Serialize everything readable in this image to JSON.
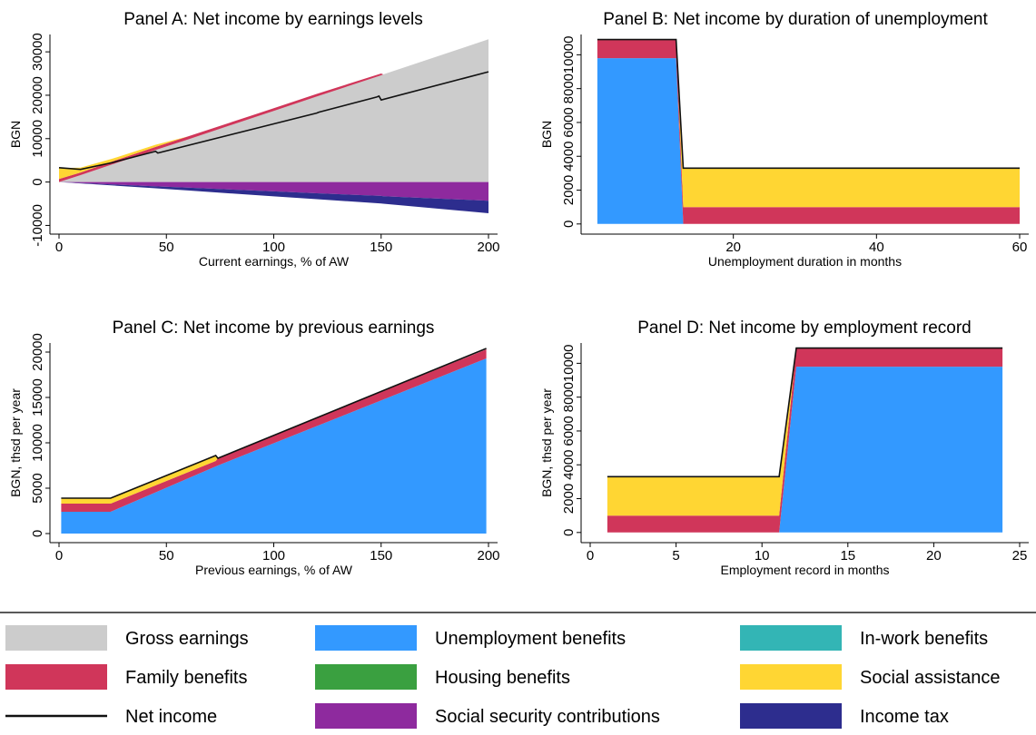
{
  "colors": {
    "gross": "#cccccc",
    "family": "#d0365a",
    "net": "#111111",
    "unemp": "#3399ff",
    "housing": "#3aa040",
    "ssc": "#8e2a9e",
    "inwork": "#33b5b5",
    "socassist": "#ffd633",
    "tax": "#2d2d8e"
  },
  "legend": [
    {
      "key": "gross",
      "label": "Gross earnings",
      "kind": "fill"
    },
    {
      "key": "unemp",
      "label": "Unemployment benefits",
      "kind": "fill"
    },
    {
      "key": "inwork",
      "label": "In-work benefits",
      "kind": "fill"
    },
    {
      "key": "family",
      "label": "Family benefits",
      "kind": "fill"
    },
    {
      "key": "housing",
      "label": "Housing benefits",
      "kind": "fill"
    },
    {
      "key": "socassist",
      "label": "Social assistance",
      "kind": "fill"
    },
    {
      "key": "net",
      "label": "Net income",
      "kind": "line"
    },
    {
      "key": "ssc",
      "label": "Social security contributions",
      "kind": "fill"
    },
    {
      "key": "tax",
      "label": "Income tax",
      "kind": "fill"
    }
  ],
  "chart_data": [
    {
      "type": "area",
      "title": "Panel A: Net income by earnings levels",
      "xlabel": "Current earnings, % of AW",
      "ylabel": "BGN",
      "xlim": [
        0,
        200
      ],
      "ylim": [
        -12000,
        34000
      ],
      "xticks": [
        "0",
        "50",
        "100",
        "150",
        "200"
      ],
      "xtick_values": [
        0,
        50,
        100,
        150,
        200
      ],
      "yticks": [
        "-10000",
        "0",
        "10000",
        "20000",
        "30000"
      ],
      "ytick_values": [
        -10000,
        0,
        10000,
        20000,
        30000
      ],
      "x": [
        0,
        10,
        25,
        45,
        60,
        100,
        120,
        150,
        151,
        200
      ],
      "areas": [
        {
          "key": "gross",
          "lower": [
            0,
            0,
            0,
            0,
            0,
            0,
            0,
            0,
            0,
            0
          ],
          "upper": [
            0,
            1600,
            4100,
            7400,
            9800,
            16400,
            19700,
            24600,
            24800,
            32900
          ]
        },
        {
          "key": "family",
          "lower": [
            0,
            1600,
            4100,
            7400,
            9800,
            16400,
            19700,
            24600,
            24800,
            32900
          ],
          "upper": [
            700,
            2200,
            4800,
            8100,
            10500,
            17000,
            20300,
            25000,
            24800,
            32900
          ]
        },
        {
          "key": "socassist",
          "lower": [
            700,
            2200,
            4800,
            8100,
            10500,
            17000,
            20300,
            25000,
            24800,
            32900
          ],
          "upper": [
            3200,
            3300,
            5400,
            8600,
            10500,
            17000,
            20300,
            25000,
            24800,
            32900
          ]
        },
        {
          "key": "ssc",
          "lower": [
            0,
            -220,
            -550,
            -1000,
            -1300,
            -2150,
            -2600,
            -3200,
            -3250,
            -4300
          ],
          "upper": [
            0,
            0,
            0,
            0,
            0,
            0,
            0,
            0,
            0,
            0
          ]
        },
        {
          "key": "tax",
          "lower": [
            0,
            -320,
            -800,
            -1450,
            -1950,
            -3300,
            -3950,
            -4950,
            -5000,
            -7200
          ],
          "upper": [
            0,
            -220,
            -550,
            -1000,
            -1300,
            -2150,
            -2600,
            -3200,
            -3250,
            -4300
          ]
        }
      ],
      "net_line": {
        "x": [
          0,
          10,
          25,
          45,
          46,
          100,
          120,
          121,
          148,
          149,
          150,
          200
        ],
        "y": [
          3300,
          2900,
          4500,
          7100,
          6700,
          13400,
          15900,
          16100,
          19600,
          19800,
          18900,
          25400
        ]
      }
    },
    {
      "type": "area",
      "title": "Panel B: Net income by duration of unemployment",
      "xlabel": "Unemployment duration in months",
      "ylabel": "BGN",
      "xlim": [
        0,
        60
      ],
      "ylim": [
        -600,
        11200
      ],
      "xticks": [
        "20",
        "40",
        "60"
      ],
      "xtick_values": [
        20,
        40,
        60
      ],
      "yticks": [
        "0",
        "2000",
        "4000",
        "6000",
        "8000",
        "10000"
      ],
      "ytick_values": [
        0,
        2000,
        4000,
        6000,
        8000,
        10000
      ],
      "x": [
        1,
        12,
        13,
        60
      ],
      "areas": [
        {
          "key": "unemp",
          "lower": [
            0,
            0,
            0,
            0
          ],
          "upper": [
            9800,
            9800,
            0,
            0
          ]
        },
        {
          "key": "family",
          "lower": [
            9800,
            9800,
            0,
            0
          ],
          "upper": [
            10900,
            10900,
            1000,
            1000
          ]
        },
        {
          "key": "socassist",
          "lower": [
            10900,
            10900,
            1000,
            1000
          ],
          "upper": [
            10900,
            10900,
            3300,
            3300
          ]
        }
      ],
      "net_line": {
        "x": [
          1,
          12,
          13,
          60
        ],
        "y": [
          10900,
          10900,
          3300,
          3300
        ]
      }
    },
    {
      "type": "area",
      "title": "Panel C: Net income by previous earnings",
      "xlabel": "Previous earnings, % of AW",
      "ylabel": "BGN, thsd per year",
      "xlim": [
        0,
        200
      ],
      "ylim": [
        -1000,
        21000
      ],
      "xticks": [
        "0",
        "50",
        "100",
        "150",
        "200"
      ],
      "xtick_values": [
        0,
        50,
        100,
        150,
        200
      ],
      "yticks": [
        "0",
        "5000",
        "10000",
        "15000",
        "20000"
      ],
      "ytick_values": [
        0,
        5000,
        10000,
        15000,
        20000
      ],
      "x": [
        1,
        24,
        73,
        74,
        199
      ],
      "areas": [
        {
          "key": "unemp",
          "lower": [
            0,
            0,
            0,
            0,
            0
          ],
          "upper": [
            2400,
            2400,
            7400,
            7500,
            19300
          ]
        },
        {
          "key": "family",
          "lower": [
            2400,
            2400,
            7400,
            7500,
            19300
          ],
          "upper": [
            3300,
            3300,
            8000,
            8300,
            20300
          ]
        },
        {
          "key": "socassist",
          "lower": [
            3300,
            3300,
            8000,
            8300,
            20300
          ],
          "upper": [
            3900,
            3900,
            8600,
            8300,
            20300
          ]
        }
      ],
      "net_line": {
        "x": [
          1,
          24,
          73,
          74,
          199
        ],
        "y": [
          3900,
          3900,
          8600,
          8300,
          20400
        ]
      }
    },
    {
      "type": "area",
      "title": "Panel D: Net income by employment record",
      "xlabel": "Employment record in months",
      "ylabel": "BGN, thsd per year",
      "xlim": [
        0,
        25
      ],
      "ylim": [
        -600,
        11200
      ],
      "xticks": [
        "0",
        "5",
        "10",
        "15",
        "20",
        "25"
      ],
      "xtick_values": [
        0,
        5,
        10,
        15,
        20,
        25
      ],
      "yticks": [
        "0",
        "2000",
        "4000",
        "6000",
        "8000",
        "10000"
      ],
      "ytick_values": [
        0,
        2000,
        4000,
        6000,
        8000,
        10000
      ],
      "x": [
        1,
        11,
        12,
        24
      ],
      "areas": [
        {
          "key": "unemp",
          "lower": [
            0,
            0,
            0,
            0
          ],
          "upper": [
            0,
            0,
            9800,
            9800
          ]
        },
        {
          "key": "family",
          "lower": [
            0,
            0,
            9800,
            9800
          ],
          "upper": [
            1000,
            1000,
            10900,
            10900
          ]
        },
        {
          "key": "socassist",
          "lower": [
            1000,
            1000,
            10900,
            10900
          ],
          "upper": [
            3300,
            3300,
            10900,
            10900
          ]
        }
      ],
      "net_line": {
        "x": [
          1,
          11,
          12,
          24
        ],
        "y": [
          3300,
          3300,
          10900,
          10900
        ]
      }
    }
  ]
}
